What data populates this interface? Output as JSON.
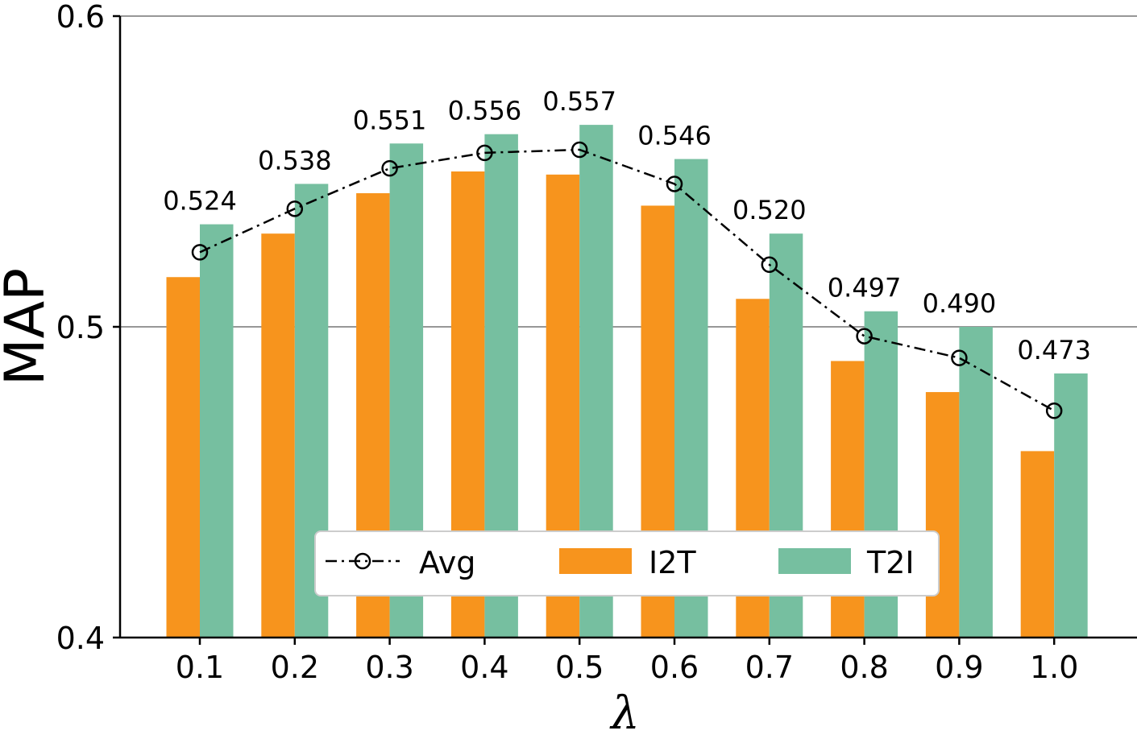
{
  "chart_data": {
    "type": "bar",
    "title": "",
    "xlabel": "λ",
    "ylabel": "MAP",
    "ylim": [
      0.4,
      0.6
    ],
    "yticks": [
      0.4,
      0.5,
      0.6
    ],
    "ytick_labels": [
      "0.4",
      "0.5",
      "0.6"
    ],
    "grid": "horizontal",
    "categories": [
      "0.1",
      "0.2",
      "0.3",
      "0.4",
      "0.5",
      "0.6",
      "0.7",
      "0.8",
      "0.9",
      "1.0"
    ],
    "series": [
      {
        "name": "I2T",
        "type": "bar",
        "color": "#F7941D",
        "values": [
          0.516,
          0.53,
          0.543,
          0.55,
          0.549,
          0.539,
          0.509,
          0.489,
          0.479,
          0.46
        ]
      },
      {
        "name": "T2I",
        "type": "bar",
        "color": "#76BFA0",
        "values": [
          0.533,
          0.546,
          0.559,
          0.562,
          0.565,
          0.554,
          0.53,
          0.505,
          0.5,
          0.485
        ]
      },
      {
        "name": "Avg",
        "type": "line",
        "style": "dash-dot",
        "marker": "open-circle",
        "color": "#000000",
        "values": [
          0.524,
          0.538,
          0.551,
          0.556,
          0.557,
          0.546,
          0.52,
          0.497,
          0.49,
          0.473
        ],
        "labels": [
          "0.524",
          "0.538",
          "0.551",
          "0.556",
          "0.557",
          "0.546",
          "0.520",
          "0.497",
          "0.490",
          "0.473"
        ]
      }
    ],
    "legend": {
      "placement": "lower-center",
      "entries": [
        "Avg",
        "I2T",
        "T2I"
      ]
    }
  }
}
